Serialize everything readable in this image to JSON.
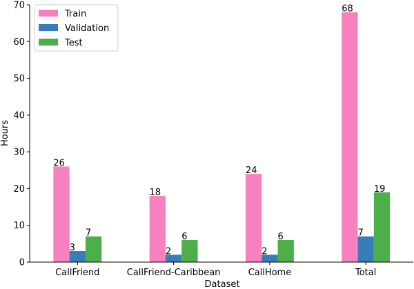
{
  "chart_data": {
    "type": "bar",
    "xlabel": "Dataset",
    "ylabel": "Hours",
    "ylim": [
      0,
      70
    ],
    "yticks": [
      0,
      10,
      20,
      30,
      40,
      50,
      60,
      70
    ],
    "categories": [
      "CallFriend",
      "CallFriend-Caribbean",
      "CallHome",
      "Total"
    ],
    "series": [
      {
        "name": "Train",
        "color": "#f781bf",
        "values": [
          26,
          18,
          24,
          68
        ]
      },
      {
        "name": "Validation",
        "color": "#377eb8",
        "values": [
          3,
          2,
          2,
          7
        ]
      },
      {
        "name": "Test",
        "color": "#4daf4a",
        "values": [
          7,
          6,
          6,
          19
        ]
      }
    ],
    "legend_position": "top-left",
    "grid": false
  }
}
